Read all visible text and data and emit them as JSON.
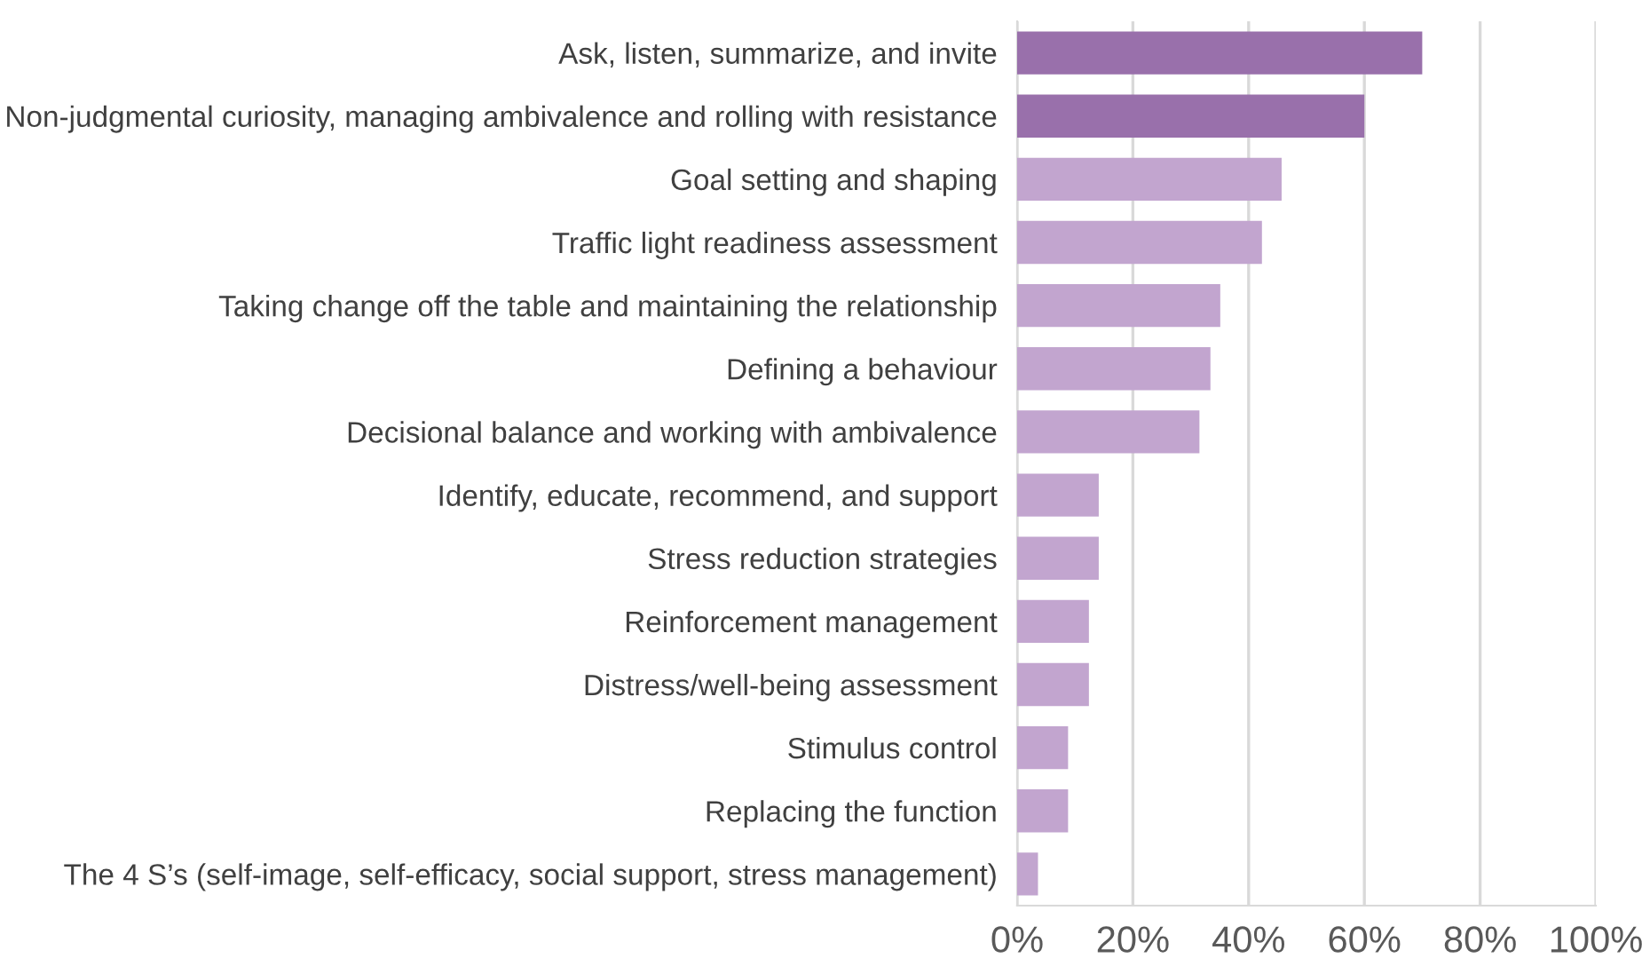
{
  "chart_data": {
    "type": "bar",
    "orientation": "horizontal",
    "categories": [
      "Ask, listen, summarize, and invite",
      "Non-judgmental curiosity, managing ambivalence and rolling with resistance",
      "Goal setting and shaping",
      "Traffic light readiness assessment",
      "Taking change off the table and maintaining the relationship",
      "Defining a behaviour",
      "Decisional balance and working with ambivalence",
      "Identify, educate, recommend, and support",
      "Stress reduction strategies",
      "Reinforcement management",
      "Distress/well-being assessment",
      "Stimulus control",
      "Replacing the function",
      "The 4 S’s (self-image, self-efficacy, social support, stress management)"
    ],
    "values": [
      70,
      60,
      45.7,
      42.3,
      35.1,
      33.4,
      31.5,
      14.1,
      14.1,
      12.4,
      12.4,
      8.8,
      8.8,
      3.6
    ],
    "colors": [
      "#9970ab",
      "#9970ab",
      "#c2a5cf",
      "#c2a5cf",
      "#c2a5cf",
      "#c2a5cf",
      "#c2a5cf",
      "#c2a5cf",
      "#c2a5cf",
      "#c2a5cf",
      "#c2a5cf",
      "#c2a5cf",
      "#c2a5cf",
      "#c2a5cf"
    ],
    "xlim": [
      0,
      100
    ],
    "xticks": [
      {
        "value": 0,
        "label": "0%"
      },
      {
        "value": 20,
        "label": "20%"
      },
      {
        "value": 40,
        "label": "40%"
      },
      {
        "value": 60,
        "label": "60%"
      },
      {
        "value": 80,
        "label": "80%"
      },
      {
        "value": 100,
        "label": "100%"
      }
    ],
    "grid": "x",
    "legend": false
  }
}
